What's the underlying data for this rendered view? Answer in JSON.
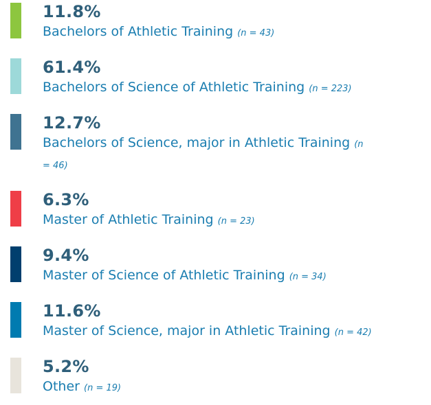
{
  "items": [
    {
      "percent": "11.8%",
      "label": "Bachelors of Athletic Training",
      "n": "(n = 43)",
      "color": "#8dc63f"
    },
    {
      "percent": "61.4%",
      "label": "Bachelors of Science of Athletic Training",
      "n": "(n = 223)",
      "color": "#9dd9d9"
    },
    {
      "percent": "12.7%",
      "label": "Bachelors of Science, major in Athletic Training",
      "n": "(n = 46)",
      "color": "#3f7391"
    },
    {
      "percent": "6.3%",
      "label": "Master of Athletic Training",
      "n": "(n = 23)",
      "color": "#ef3e47"
    },
    {
      "percent": "9.4%",
      "label": "Master of Science of Athletic Training",
      "n": "(n = 34)",
      "color": "#003f6e"
    },
    {
      "percent": "11.6%",
      "label": "Master of Science, major in Athletic Training",
      "n": "(n = 42)",
      "color": "#007bb0"
    },
    {
      "percent": "5.2%",
      "label": "Other",
      "n": "(n = 19)",
      "color": "#e8e4dc"
    }
  ]
}
